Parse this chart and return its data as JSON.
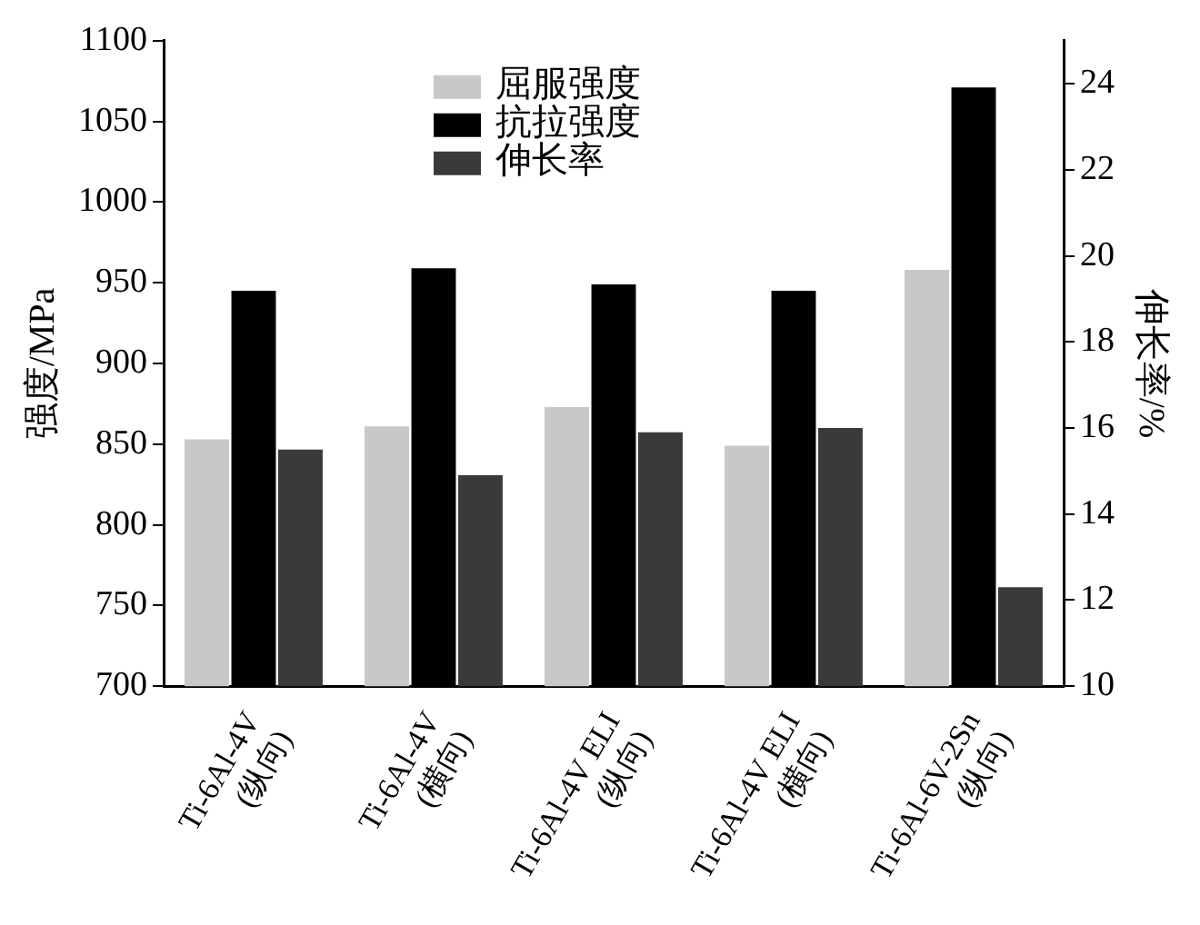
{
  "chart_data": {
    "type": "bar",
    "categories": [
      "Ti-6Al-4V\n(纵向)",
      "Ti-6Al-4V\n(横向)",
      "Ti-6Al-4V ELI\n(纵向)",
      "Ti-6Al-4V ELI\n(横向)",
      "Ti-6Al-6V-2Sn\n(纵向)"
    ],
    "series": [
      {
        "name": "屈服强度",
        "color": "#c8c8c8",
        "values": [
          853,
          861,
          873,
          849,
          958
        ]
      },
      {
        "name": "抗拉强度",
        "color": "#000000",
        "values": [
          945,
          959,
          949,
          945,
          1071
        ]
      },
      {
        "name": "伸长率",
        "color": "#3a3a3a",
        "values": [
          15.5,
          14.9,
          15.9,
          16,
          12.3
        ],
        "axis": "y2"
      }
    ],
    "ylabel": "强度/MPa",
    "y2label": "伸长率/%",
    "ylim": [
      700,
      1100
    ],
    "yticks": [
      700,
      750,
      800,
      850,
      900,
      950,
      1000,
      1050,
      1100
    ],
    "y2lim": [
      10,
      25
    ],
    "y2ticks": [
      10,
      12,
      14,
      16,
      18,
      20,
      22,
      24
    ],
    "grid": false,
    "legend": "top"
  }
}
